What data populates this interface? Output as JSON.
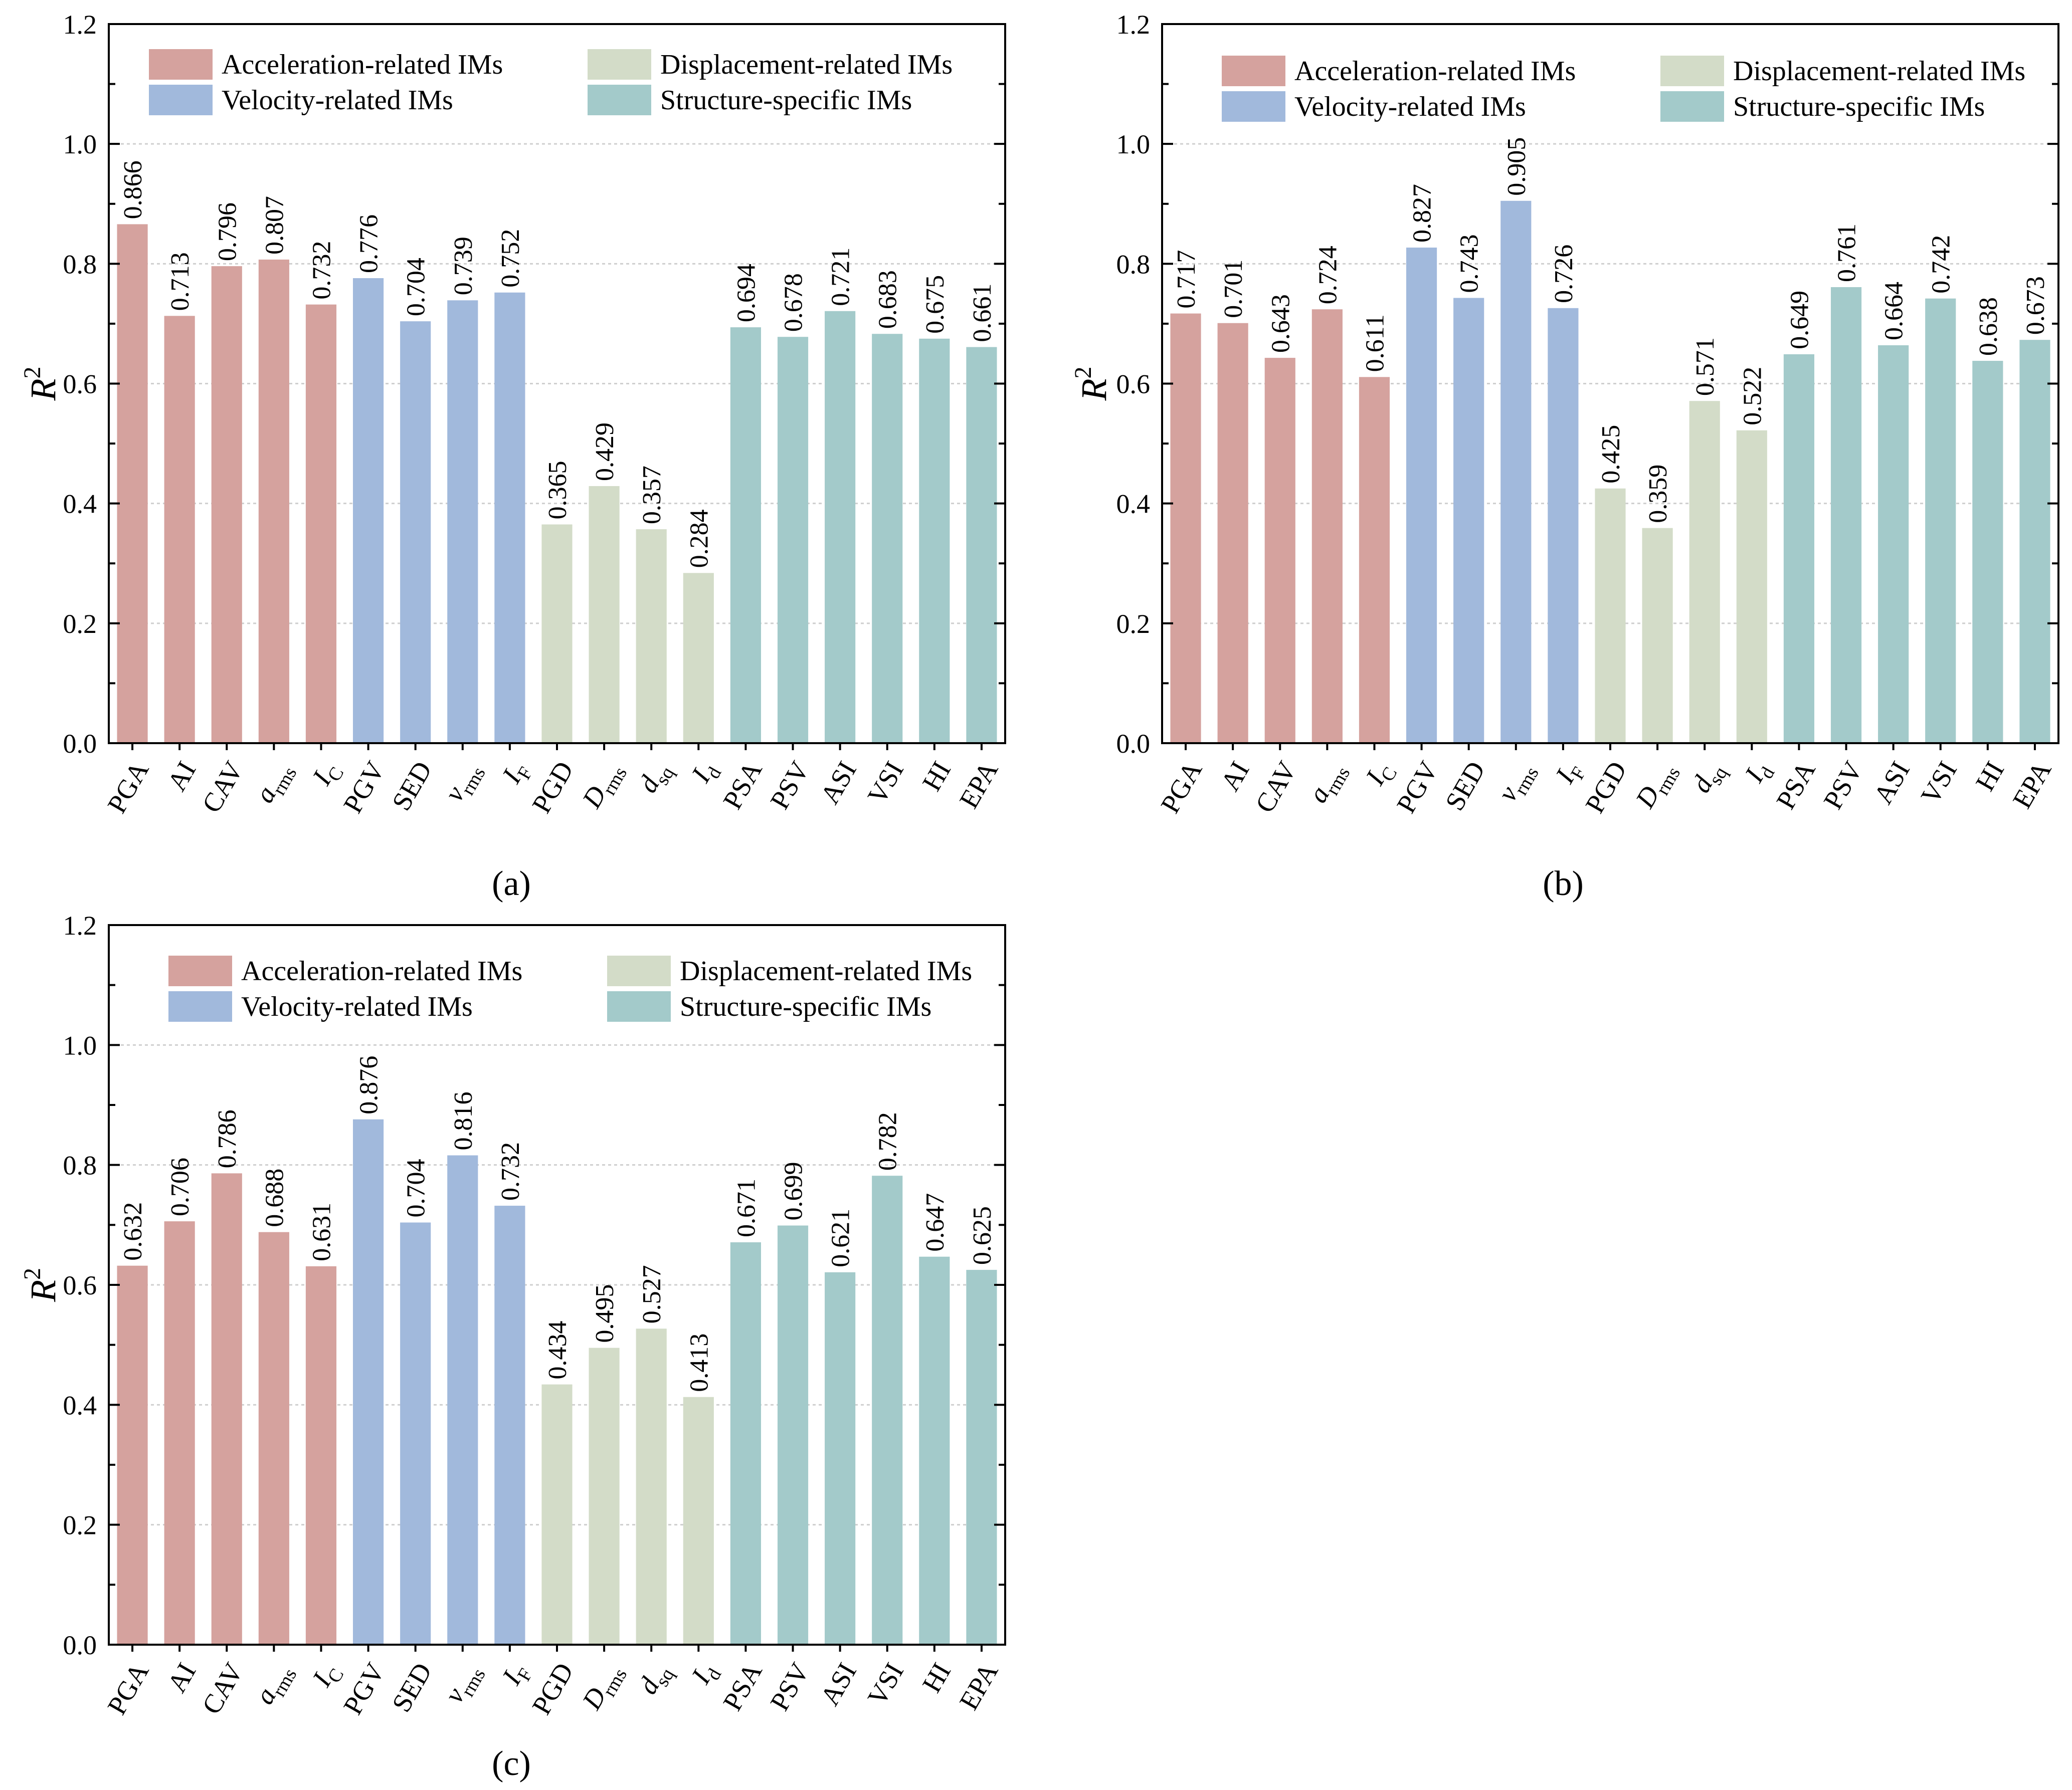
{
  "chart_data": [
    {
      "panel_label": "(a)",
      "type": "bar",
      "title": "",
      "xlabel": "",
      "ylabel": {
        "base": "R",
        "sup": "2"
      },
      "ylim": [
        0,
        1.2
      ],
      "yticks": [
        0,
        0.2,
        0.4,
        0.6,
        0.8,
        1.0,
        1.2
      ],
      "ytick_labels": [
        "0.0",
        "0.2",
        "0.4",
        "0.6",
        "0.8",
        "1.0",
        "1.2"
      ],
      "yminor_step": 0.1,
      "grid": true,
      "legend_position": "top",
      "legend": [
        {
          "key": "acceleration",
          "label": "Acceleration-related IMs",
          "color": "#D5A29E"
        },
        {
          "key": "displacement",
          "label": "Displacement-related IMs",
          "color": "#D3DCC8"
        },
        {
          "key": "velocity",
          "label": "Velocity-related IMs",
          "color": "#A1B9DC"
        },
        {
          "key": "structure",
          "label": "Structure-specific IMs",
          "color": "#A3CACA"
        }
      ],
      "categories": [
        {
          "base": "PGA"
        },
        {
          "base": "AI"
        },
        {
          "base": "CAV"
        },
        {
          "base": "a",
          "sub": "rms",
          "italic": true
        },
        {
          "base": "I",
          "sub": "C",
          "italic": true
        },
        {
          "base": "PGV"
        },
        {
          "base": "SED"
        },
        {
          "base": "v",
          "sub": "rms",
          "italic": true
        },
        {
          "base": "I",
          "sub": "F",
          "italic": true
        },
        {
          "base": "PGD"
        },
        {
          "base": "D",
          "sub": "rms",
          "italic": true
        },
        {
          "base": "d",
          "sub": "sq",
          "italic": true
        },
        {
          "base": "I",
          "sub": "d",
          "italic": true
        },
        {
          "base": "PSA"
        },
        {
          "base": "PSV"
        },
        {
          "base": "ASI"
        },
        {
          "base": "VSI"
        },
        {
          "base": "HI"
        },
        {
          "base": "EPA"
        }
      ],
      "category_groups": [
        "acceleration",
        "acceleration",
        "acceleration",
        "acceleration",
        "acceleration",
        "velocity",
        "velocity",
        "velocity",
        "velocity",
        "displacement",
        "displacement",
        "displacement",
        "displacement",
        "structure",
        "structure",
        "structure",
        "structure",
        "structure",
        "structure"
      ],
      "values": [
        0.866,
        0.713,
        0.796,
        0.807,
        0.732,
        0.776,
        0.704,
        0.739,
        0.752,
        0.365,
        0.429,
        0.357,
        0.284,
        0.694,
        0.678,
        0.721,
        0.683,
        0.675,
        0.661
      ]
    },
    {
      "panel_label": "(b)",
      "type": "bar",
      "title": "",
      "xlabel": "",
      "ylabel": {
        "base": "R",
        "sup": "2"
      },
      "ylim": [
        0,
        1.2
      ],
      "yticks": [
        0,
        0.2,
        0.4,
        0.6,
        0.8,
        1.0,
        1.2
      ],
      "ytick_labels": [
        "0.0",
        "0.2",
        "0.4",
        "0.6",
        "0.8",
        "1.0",
        "1.2"
      ],
      "yminor_step": 0.1,
      "grid": true,
      "legend_position": "top",
      "legend": [
        {
          "key": "acceleration",
          "label": "Acceleration-related IMs",
          "color": "#D5A29E"
        },
        {
          "key": "displacement",
          "label": "Displacement-related IMs",
          "color": "#D3DCC8"
        },
        {
          "key": "velocity",
          "label": "Velocity-related IMs",
          "color": "#A1B9DC"
        },
        {
          "key": "structure",
          "label": "Structure-specific IMs",
          "color": "#A3CACA"
        }
      ],
      "categories": [
        {
          "base": "PGA"
        },
        {
          "base": "AI"
        },
        {
          "base": "CAV"
        },
        {
          "base": "a",
          "sub": "rms",
          "italic": true
        },
        {
          "base": "I",
          "sub": "C",
          "italic": true
        },
        {
          "base": "PGV"
        },
        {
          "base": "SED"
        },
        {
          "base": "v",
          "sub": "rms",
          "italic": true
        },
        {
          "base": "I",
          "sub": "F",
          "italic": true
        },
        {
          "base": "PGD"
        },
        {
          "base": "D",
          "sub": "rms",
          "italic": true
        },
        {
          "base": "d",
          "sub": "sq",
          "italic": true
        },
        {
          "base": "I",
          "sub": "d",
          "italic": true
        },
        {
          "base": "PSA"
        },
        {
          "base": "PSV"
        },
        {
          "base": "ASI"
        },
        {
          "base": "VSI"
        },
        {
          "base": "HI"
        },
        {
          "base": "EPA"
        }
      ],
      "category_groups": [
        "acceleration",
        "acceleration",
        "acceleration",
        "acceleration",
        "acceleration",
        "velocity",
        "velocity",
        "velocity",
        "velocity",
        "displacement",
        "displacement",
        "displacement",
        "displacement",
        "structure",
        "structure",
        "structure",
        "structure",
        "structure",
        "structure"
      ],
      "values": [
        0.717,
        0.701,
        0.643,
        0.724,
        0.611,
        0.827,
        0.743,
        0.905,
        0.726,
        0.425,
        0.359,
        0.571,
        0.522,
        0.649,
        0.761,
        0.664,
        0.742,
        0.638,
        0.673
      ]
    },
    {
      "panel_label": "(c)",
      "type": "bar",
      "title": "",
      "xlabel": "",
      "ylabel": {
        "base": "R",
        "sup": "2"
      },
      "ylim": [
        0,
        1.2
      ],
      "yticks": [
        0,
        0.2,
        0.4,
        0.6,
        0.8,
        1.0,
        1.2
      ],
      "ytick_labels": [
        "0.0",
        "0.2",
        "0.4",
        "0.6",
        "0.8",
        "1.0",
        "1.2"
      ],
      "yminor_step": 0.1,
      "grid": true,
      "legend_position": "top",
      "legend": [
        {
          "key": "acceleration",
          "label": "Acceleration-related IMs",
          "color": "#D5A29E"
        },
        {
          "key": "displacement",
          "label": "Displacement-related IMs",
          "color": "#D3DCC8"
        },
        {
          "key": "velocity",
          "label": "Velocity-related IMs",
          "color": "#A1B9DC"
        },
        {
          "key": "structure",
          "label": "Structure-specific IMs",
          "color": "#A3CACA"
        }
      ],
      "categories": [
        {
          "base": "PGA"
        },
        {
          "base": "AI"
        },
        {
          "base": "CAV"
        },
        {
          "base": "a",
          "sub": "rms",
          "italic": true
        },
        {
          "base": "I",
          "sub": "C",
          "italic": true
        },
        {
          "base": "PGV"
        },
        {
          "base": "SED"
        },
        {
          "base": "v",
          "sub": "rms",
          "italic": true
        },
        {
          "base": "I",
          "sub": "F",
          "italic": true
        },
        {
          "base": "PGD"
        },
        {
          "base": "D",
          "sub": "rms",
          "italic": true
        },
        {
          "base": "d",
          "sub": "sq",
          "italic": true
        },
        {
          "base": "I",
          "sub": "d",
          "italic": true
        },
        {
          "base": "PSA"
        },
        {
          "base": "PSV"
        },
        {
          "base": "ASI"
        },
        {
          "base": "VSI"
        },
        {
          "base": "HI"
        },
        {
          "base": "EPA"
        }
      ],
      "category_groups": [
        "acceleration",
        "acceleration",
        "acceleration",
        "acceleration",
        "acceleration",
        "velocity",
        "velocity",
        "velocity",
        "velocity",
        "displacement",
        "displacement",
        "displacement",
        "displacement",
        "structure",
        "structure",
        "structure",
        "structure",
        "structure",
        "structure"
      ],
      "values": [
        0.632,
        0.706,
        0.786,
        0.688,
        0.631,
        0.876,
        0.704,
        0.816,
        0.732,
        0.434,
        0.495,
        0.527,
        0.413,
        0.671,
        0.699,
        0.621,
        0.782,
        0.647,
        0.625
      ]
    }
  ]
}
